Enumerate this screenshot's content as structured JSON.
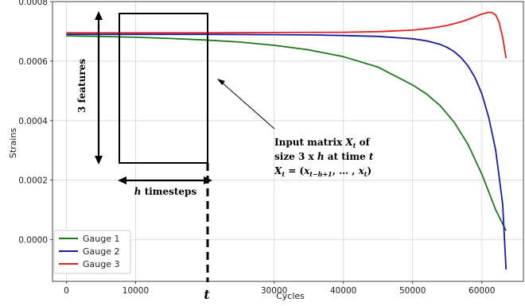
{
  "chart_data": {
    "type": "line",
    "title": "",
    "xlabel": "Cycles",
    "ylabel": "Strains",
    "xlim": [
      -2000,
      66000
    ],
    "ylim": [
      -0.00014,
      0.0008
    ],
    "xticks": [
      0,
      10000,
      30000,
      40000,
      50000,
      60000
    ],
    "xtick_labels": [
      "0",
      "10000",
      "30000",
      "40000",
      "50000",
      "60000"
    ],
    "yticks": [
      0.0,
      0.0002,
      0.0004,
      0.0006,
      0.0008
    ],
    "ytick_labels": [
      "0.0000",
      "0.0002",
      "0.0004",
      "0.0006",
      "0.0008"
    ],
    "grid": true,
    "legend_position": "lower-left",
    "series": [
      {
        "name": "Gauge 1",
        "color": "#1a7a1a",
        "x": [
          0,
          5000,
          10000,
          15000,
          20000,
          25000,
          30000,
          35000,
          40000,
          45000,
          50000,
          52000,
          54000,
          56000,
          58000,
          60000,
          61000,
          62000,
          63500
        ],
        "y": [
          0.000685,
          0.000683,
          0.00068,
          0.000676,
          0.000671,
          0.000664,
          0.000653,
          0.000638,
          0.000615,
          0.00058,
          0.00052,
          0.00049,
          0.00045,
          0.000395,
          0.00032,
          0.00022,
          0.00016,
          0.0001,
          3e-05
        ]
      },
      {
        "name": "Gauge 2",
        "color": "#1a1aa0",
        "x": [
          0,
          10000,
          20000,
          30000,
          35000,
          40000,
          45000,
          50000,
          52000,
          54000,
          55000,
          56000,
          57000,
          58000,
          59000,
          60000,
          61000,
          62000,
          63000,
          63500
        ],
        "y": [
          0.00069,
          0.00069,
          0.00069,
          0.000689,
          0.000688,
          0.000686,
          0.000683,
          0.000675,
          0.000668,
          0.000656,
          0.000646,
          0.000632,
          0.000612,
          0.000584,
          0.000545,
          0.00049,
          0.00041,
          0.0003,
          0.00012,
          -0.0001
        ]
      },
      {
        "name": "Gauge 3",
        "color": "#e02020",
        "x": [
          0,
          10000,
          20000,
          30000,
          40000,
          45000,
          50000,
          53000,
          55000,
          57000,
          58000,
          59000,
          60000,
          61000,
          61500,
          62000,
          62500,
          63000,
          63500
        ],
        "y": [
          0.000695,
          0.000695,
          0.000695,
          0.000696,
          0.000697,
          0.000699,
          0.000704,
          0.000712,
          0.00072,
          0.000732,
          0.00074,
          0.000749,
          0.000758,
          0.000764,
          0.000763,
          0.000755,
          0.00073,
          0.00068,
          0.00061
        ]
      }
    ],
    "annotations": {
      "features_label": "3 features",
      "timesteps_label": " timesteps",
      "timesteps_var": "h",
      "t_label": "t",
      "input_line1_prefix": "Input matrix ",
      "input_line1_var": "X",
      "input_line1_sub": "t",
      "input_line1_suffix": " of",
      "input_line2_prefix": "size 3 x ",
      "input_line2_h": "h",
      "input_line2_mid": " at time ",
      "input_line2_t": "t",
      "formula_lhs": "X",
      "formula_lhs_sub": "t",
      "formula_eq": " = (",
      "formula_x1": "x",
      "formula_x1_sub": "t−h+1",
      "formula_mid": ", … , ",
      "formula_x2": "x",
      "formula_x2_sub": "t",
      "formula_close": ")"
    }
  }
}
